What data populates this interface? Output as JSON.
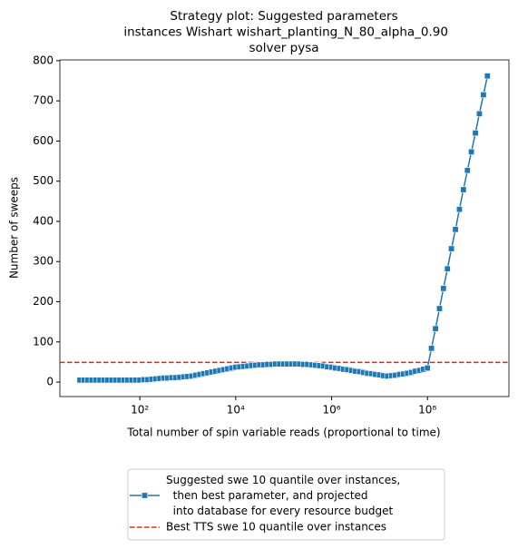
{
  "chart_data": {
    "type": "line",
    "title": "Strategy plot: Suggested parameters\n instances Wishart wishart_planting_N_80_alpha_0.90\nsolver pysa",
    "xlabel": "Total number of spin variable reads (proportional to time)",
    "ylabel": "Number of sweeps",
    "xscale": "log",
    "xlim": [
      2.15,
      5000000000.0
    ],
    "ylim": [
      -36,
      802
    ],
    "xticks": [
      {
        "value": 100,
        "label": "10²"
      },
      {
        "value": 10000,
        "label": "10⁴"
      },
      {
        "value": 1000000,
        "label": "10⁶"
      },
      {
        "value": 100000000,
        "label": "10⁸"
      }
    ],
    "yticks": [
      0,
      100,
      200,
      300,
      400,
      500,
      600,
      700,
      800
    ],
    "legend": "lower center outside",
    "x": [
      5.62,
      6.81,
      8.25,
      10.0,
      12.1,
      14.7,
      17.8,
      21.5,
      26.1,
      31.6,
      38.3,
      46.4,
      56.2,
      68.1,
      82.5,
      100.0,
      121.0,
      147.0,
      178.0,
      215.0,
      261.0,
      316.0,
      383.0,
      464.0,
      562.0,
      681.0,
      825.0,
      1000.0,
      1210.0,
      1470.0,
      1780.0,
      2150.0,
      2610.0,
      3160.0,
      3830.0,
      4640.0,
      5620.0,
      6810.0,
      8250.0,
      10000.0,
      12100.0,
      14700.0,
      17800.0,
      21500.0,
      26100.0,
      31600.0,
      38300.0,
      46400.0,
      56200.0,
      68100.0,
      82500.0,
      100000.0,
      121000.0,
      147000.0,
      178000.0,
      215000.0,
      261000.0,
      316000.0,
      383000.0,
      464000.0,
      562000.0,
      681000.0,
      825000.0,
      1000000.0,
      1210000.0,
      1470000.0,
      1780000.0,
      2150000.0,
      2610000.0,
      3160000.0,
      3830000.0,
      4640000.0,
      5620000.0,
      6810000.0,
      8250000.0,
      10000000.0,
      12100000.0,
      14700000.0,
      17800000.0,
      21500000.0,
      26100000.0,
      31600000.0,
      38300000.0,
      46400000.0,
      56200000.0,
      68100000.0,
      82500000.0,
      100000000.0,
      121000000.0,
      147000000.0,
      178000000.0,
      215000000.0,
      261000000.0,
      316000000.0,
      383000000.0,
      464000000.0,
      562000000.0,
      681000000.0,
      825000000.0,
      1000000000.0,
      1210000000.0,
      1470000000.0,
      1780000000.0
    ],
    "series": [
      {
        "name": "Suggested swe 10 quantile over instances,\n  then best parameter, and projected\n  into database for every resource budget",
        "color": "#1f77b4",
        "values": [
          5,
          5,
          5,
          5,
          5,
          5,
          5,
          5,
          5,
          5,
          5,
          5,
          5,
          5,
          5,
          5,
          6,
          6,
          7,
          8,
          9,
          10,
          10,
          11,
          11,
          12,
          13,
          14,
          15,
          17,
          19,
          21,
          23,
          25,
          27,
          29,
          31,
          33,
          35,
          37,
          38,
          39,
          40,
          41,
          42,
          43,
          43,
          44,
          44,
          45,
          45,
          45,
          45,
          45,
          45,
          45,
          44,
          44,
          43,
          42,
          41,
          40,
          38,
          37,
          35,
          34,
          32,
          31,
          29,
          27,
          26,
          24,
          22,
          21,
          19,
          18,
          16,
          15,
          16,
          17,
          19,
          20,
          22,
          24,
          27,
          29,
          32,
          35,
          84,
          133,
          183,
          233,
          282,
          332,
          380,
          430,
          479,
          527,
          573,
          620,
          668,
          715,
          762
        ]
      }
    ],
    "reference_line": {
      "name": "Best TTS swe 10 quantile over instances",
      "value": 49,
      "color": "#d62728"
    }
  }
}
